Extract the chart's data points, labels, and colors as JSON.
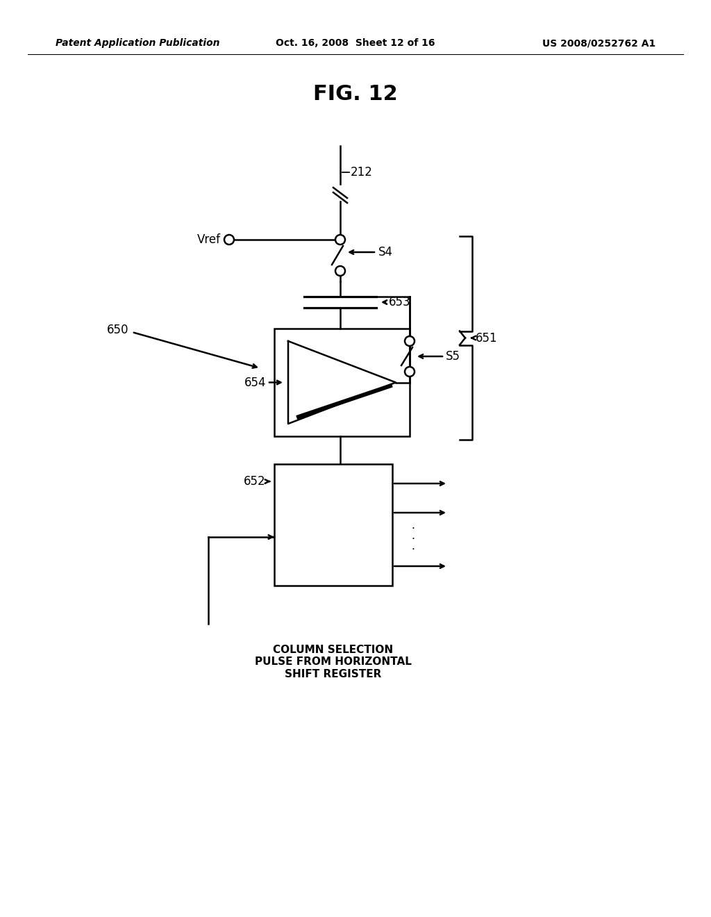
{
  "background_color": "#ffffff",
  "header_left": "Patent Application Publication",
  "header_center": "Oct. 16, 2008  Sheet 12 of 16",
  "header_right": "US 2008/0252762 A1",
  "fig_title": "FIG. 12"
}
